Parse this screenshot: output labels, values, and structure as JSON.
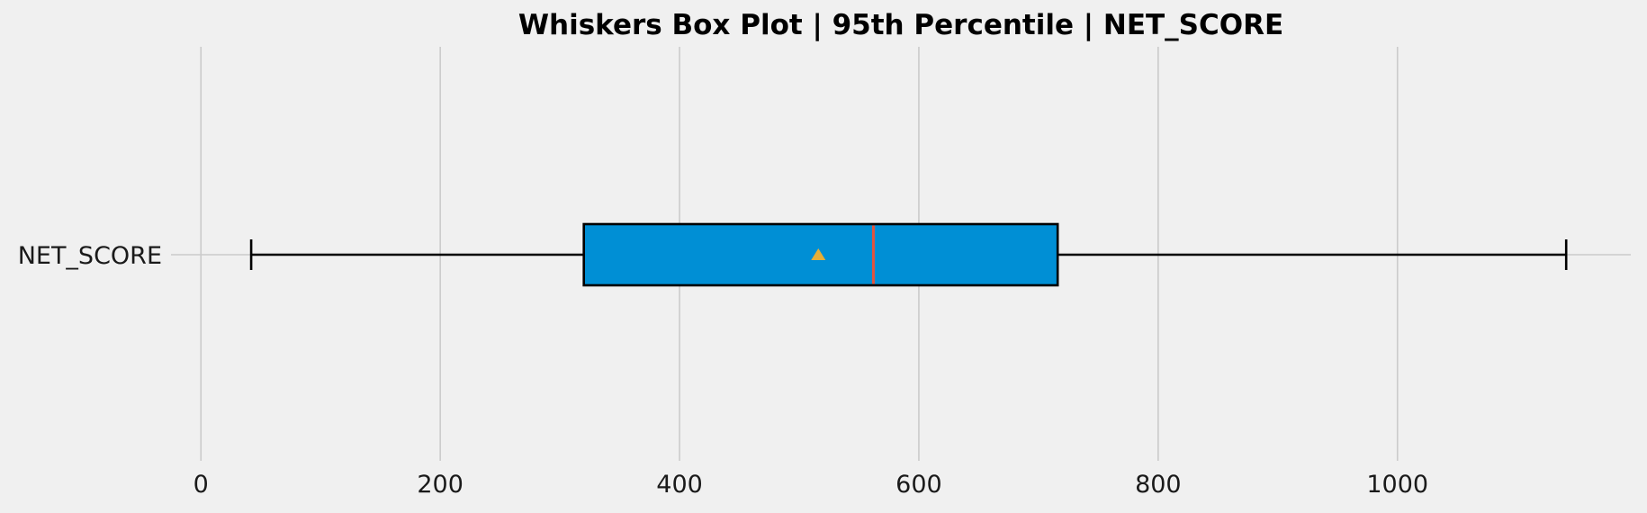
{
  "chart_data": {
    "type": "boxplot",
    "title": "Whiskers Box Plot | 95th Percentile | NET_SCORE",
    "xlabel": "",
    "ylabel": "",
    "orientation": "horizontal",
    "xlim": [
      -110,
      1195
    ],
    "xticks": [
      0,
      200,
      400,
      600,
      800,
      1000
    ],
    "grid": true,
    "categories": [
      "NET_SCORE"
    ],
    "series": [
      {
        "whisker_low": 42,
        "q1": 320,
        "median": 562,
        "mean": 516,
        "q3": 716,
        "whisker_high": 1141
      }
    ],
    "colors": {
      "background": "#f0f0f0",
      "grid": "#cbcbcb",
      "box_fill": "#008fd5",
      "box_edge": "#000000",
      "median_line": "#e5533d",
      "mean_marker": "#e5ae38",
      "whisker": "#000000",
      "tick_text": "#1a1a1a"
    }
  }
}
